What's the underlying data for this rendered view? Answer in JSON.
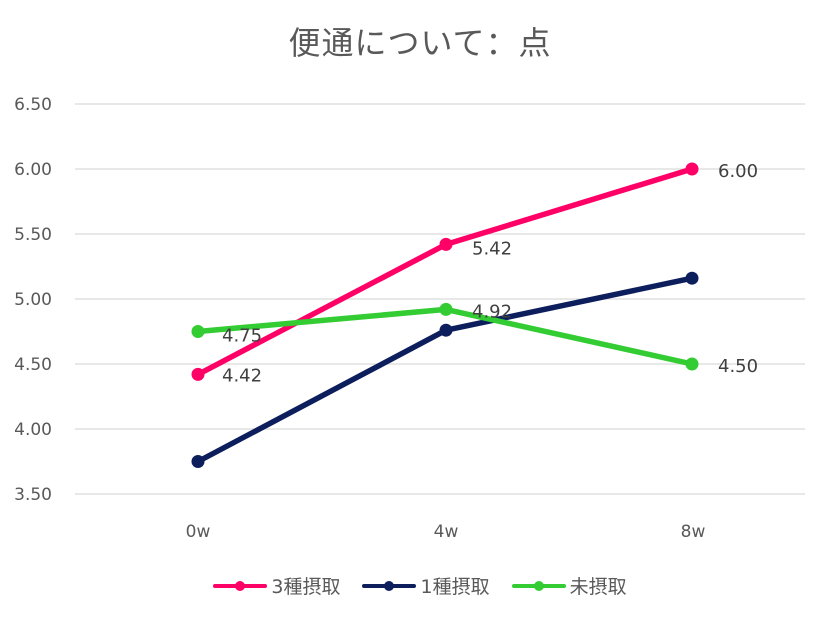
{
  "chart_data": {
    "type": "line",
    "title": "便通について：点",
    "xlabel": "",
    "ylabel": "",
    "categories": [
      "0w",
      "4w",
      "8w"
    ],
    "yticks": [
      "3.50",
      "4.00",
      "4.50",
      "5.00",
      "5.50",
      "6.00",
      "6.50"
    ],
    "ylim": [
      3.5,
      6.5
    ],
    "grid": true,
    "legend_position": "bottom",
    "series": [
      {
        "name": "3種摂取",
        "color": "#FF0066",
        "values": [
          4.42,
          5.42,
          6.0
        ],
        "labels": [
          "4.42",
          "5.42",
          "6.00"
        ]
      },
      {
        "name": "1種摂取",
        "color": "#0D1E5C",
        "values": [
          3.75,
          4.76,
          5.16
        ],
        "labels": [
          "",
          "",
          ""
        ]
      },
      {
        "name": "未摂取",
        "color": "#33CC33",
        "values": [
          4.75,
          4.92,
          4.5
        ],
        "labels": [
          "4.75",
          "4.92",
          "4.50"
        ]
      }
    ]
  }
}
